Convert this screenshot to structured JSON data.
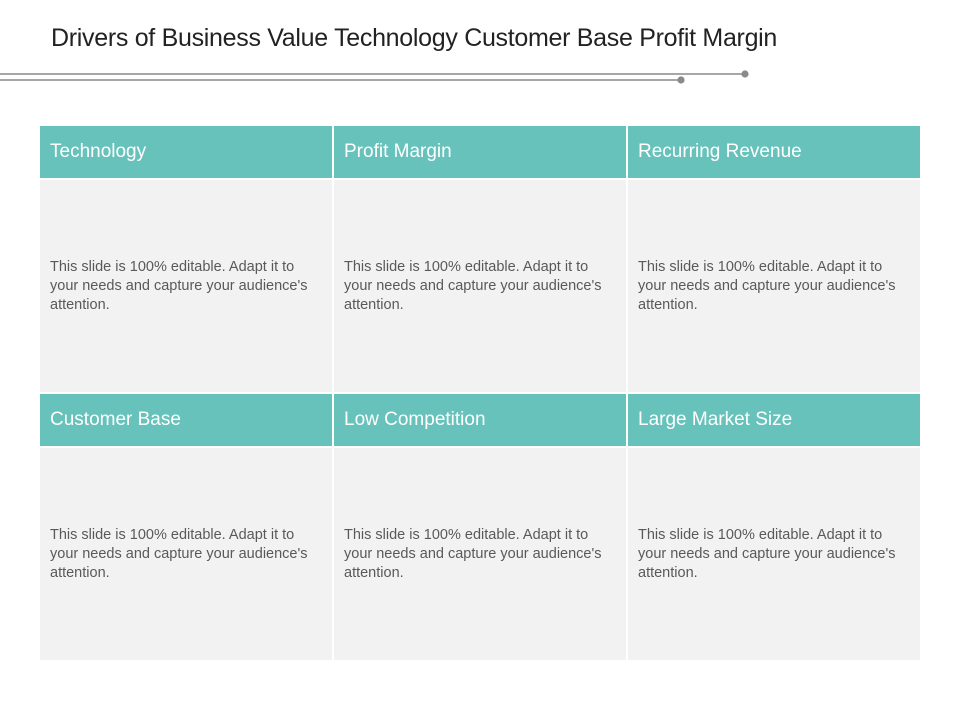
{
  "slide": {
    "title": "Drivers of Business Value Technology Customer Base Profit Margin"
  },
  "colors": {
    "header_bg": "#66c2bb",
    "body_bg": "#f2f2f2",
    "line": "#888888"
  },
  "cells": [
    {
      "header": "Technology",
      "body": "This slide is 100% editable. Adapt it to your needs and capture your audience's attention."
    },
    {
      "header": "Profit Margin",
      "body": "This slide is 100% editable. Adapt it to your needs and capture your audience's attention."
    },
    {
      "header": "Recurring Revenue",
      "body": "This slide is 100% editable. Adapt it to your needs and capture your audience's attention."
    },
    {
      "header": "Customer Base",
      "body": "This slide is 100% editable. Adapt it to your needs and capture your audience's attention."
    },
    {
      "header": "Low Competition",
      "body": "This slide is 100% editable. Adapt it to your needs and capture your audience's attention."
    },
    {
      "header": "Large Market Size",
      "body": "This slide is 100% editable. Adapt it to your needs and capture your audience's attention."
    }
  ]
}
